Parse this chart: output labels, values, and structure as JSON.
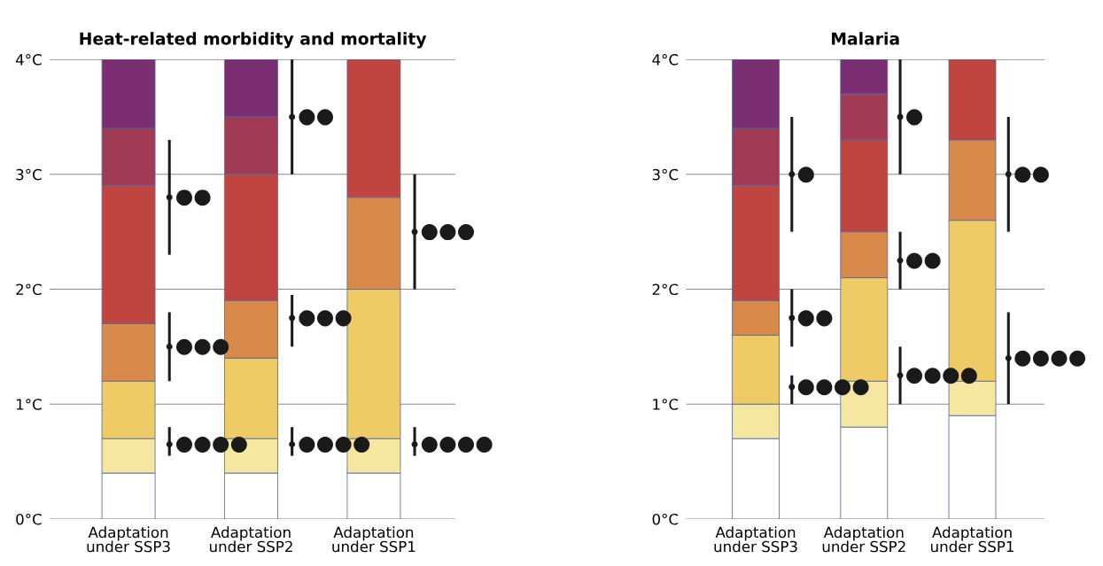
{
  "chart_data": [
    {
      "type": "bar",
      "title": "Heat-related morbidity and mortality",
      "stacked": true,
      "categories": [
        "Adaptation\nunder SSP3",
        null,
        null,
        "Adaptation\nunder SSP2",
        null,
        null,
        "Adaptation\nunder SSP1",
        null,
        null
      ],
      "ylim": [
        0,
        4
      ],
      "yticks": [
        {
          "value": 0,
          "label": "0°C"
        },
        {
          "value": 1,
          "label": "1°C"
        },
        {
          "value": 2,
          "label": "2°C"
        },
        {
          "value": 3,
          "label": "3°C"
        },
        {
          "value": 4,
          "label": "4°C"
        }
      ],
      "grid": "y",
      "series": [
        {
          "color": "#ffffff",
          "values": [
            0.4,
            null,
            null,
            0.4,
            null,
            null,
            0.4,
            null,
            null
          ]
        },
        {
          "color": "#f5e6a0",
          "values": [
            0.3,
            null,
            null,
            0.3,
            null,
            null,
            0.3,
            null,
            null
          ]
        },
        {
          "color": "#efcb65",
          "values": [
            0.5,
            null,
            null,
            0.7,
            null,
            null,
            1.3,
            null,
            null
          ]
        },
        {
          "color": "#d88a4b",
          "values": [
            0.5,
            null,
            null,
            0.5,
            null,
            null,
            0.8,
            null,
            null
          ]
        },
        {
          "color": "#c0443f",
          "values": [
            1.2,
            null,
            null,
            1.1,
            null,
            null,
            1.2,
            null,
            null
          ]
        },
        {
          "color": "#a03a55",
          "values": [
            0.5,
            null,
            null,
            0.5,
            null,
            null,
            0,
            null,
            null
          ]
        },
        {
          "color": "#7b2e72",
          "values": [
            0.6,
            null,
            null,
            0.5,
            null,
            null,
            0,
            null,
            null
          ]
        },
        {
          "type": "scatter",
          "color": "#1a1a1a",
          "marker": "circle",
          "values": [
            null,
            0.65,
            null,
            null,
            0.65,
            null,
            null,
            0.65,
            null
          ],
          "errors": [
            null,
            [
              0.55,
              0.8
            ],
            null,
            null,
            [
              0.55,
              0.8
            ],
            null,
            null,
            [
              0.55,
              0.8
            ],
            null
          ],
          "value_labels": [
            null,
            "●●●●",
            null,
            null,
            "●●●●",
            null,
            null,
            "●●●●",
            null
          ]
        },
        {
          "type": "scatter",
          "color": "#1a1a1a",
          "marker": "circle",
          "values": [
            null,
            1.5,
            null,
            null,
            1.75,
            null,
            null,
            2.5,
            null
          ],
          "errors": [
            null,
            [
              1.2,
              1.8
            ],
            null,
            null,
            [
              1.5,
              1.95
            ],
            null,
            null,
            [
              2.0,
              3.0
            ],
            null
          ],
          "value_labels": [
            null,
            "●●●",
            null,
            null,
            "●●●",
            null,
            null,
            "●●●",
            null
          ]
        },
        {
          "type": "scatter",
          "color": "#1a1a1a",
          "marker": "circle",
          "values": [
            null,
            2.8,
            null,
            null,
            3.5,
            null,
            null,
            null,
            null
          ],
          "errors": [
            null,
            [
              2.3,
              3.3
            ],
            null,
            null,
            [
              3.0,
              4.0
            ],
            null,
            null,
            null,
            null
          ],
          "value_labels": [
            null,
            "●●",
            null,
            null,
            "●●",
            null,
            null,
            null,
            null
          ]
        }
      ]
    },
    {
      "type": "bar",
      "title": "Malaria",
      "stacked": true,
      "categories": [
        "Adaptation\nunder SSP3",
        null,
        null,
        "Adaptation\nunder SSP2",
        null,
        null,
        "Adaptation\nunder SSP1",
        null,
        null
      ],
      "ylim": [
        0,
        4
      ],
      "yticks": [
        {
          "value": 0,
          "label": "0°C"
        },
        {
          "value": 1,
          "label": "1°C"
        },
        {
          "value": 2,
          "label": "2°C"
        },
        {
          "value": 3,
          "label": "3°C"
        },
        {
          "value": 4,
          "label": "4°C"
        }
      ],
      "grid": "y",
      "series": [
        {
          "color": "#ffffff",
          "values": [
            0.7,
            null,
            null,
            0.8,
            null,
            null,
            0.9,
            null,
            null
          ]
        },
        {
          "color": "#f5e6a0",
          "values": [
            0.3,
            null,
            null,
            0.4,
            null,
            null,
            0.3,
            null,
            null
          ]
        },
        {
          "color": "#efcb65",
          "values": [
            0.6,
            null,
            null,
            0.9,
            null,
            null,
            1.4,
            null,
            null
          ]
        },
        {
          "color": "#d88a4b",
          "values": [
            0.3,
            null,
            null,
            0.4,
            null,
            null,
            0.7,
            null,
            null
          ]
        },
        {
          "color": "#c0443f",
          "values": [
            1.0,
            null,
            null,
            0.8,
            null,
            null,
            0.7,
            null,
            null
          ]
        },
        {
          "color": "#a03a55",
          "values": [
            0.5,
            null,
            null,
            0.4,
            null,
            null,
            0,
            null,
            null
          ]
        },
        {
          "color": "#7b2e72",
          "values": [
            0.6,
            null,
            null,
            0.3,
            null,
            null,
            0,
            null,
            null
          ]
        },
        {
          "type": "scatter",
          "color": "#1a1a1a",
          "marker": "circle",
          "values": [
            null,
            1.15,
            null,
            null,
            1.25,
            null,
            null,
            1.4,
            null
          ],
          "errors": [
            null,
            [
              1.0,
              1.25
            ],
            null,
            null,
            [
              1.0,
              1.5
            ],
            null,
            null,
            [
              1.0,
              1.8
            ],
            null
          ],
          "value_labels": [
            null,
            "●●●●",
            null,
            null,
            "●●●●",
            null,
            null,
            "●●●●",
            null
          ]
        },
        {
          "type": "scatter",
          "color": "#1a1a1a",
          "marker": "circle",
          "values": [
            null,
            1.75,
            null,
            null,
            2.25,
            null,
            null,
            3.0,
            null
          ],
          "errors": [
            null,
            [
              1.5,
              2.0
            ],
            null,
            null,
            [
              2.0,
              2.5
            ],
            null,
            null,
            [
              2.5,
              3.5
            ],
            null
          ],
          "value_labels": [
            null,
            "●●",
            null,
            null,
            "●●",
            null,
            null,
            "●●",
            null
          ]
        },
        {
          "type": "scatter",
          "color": "#1a1a1a",
          "marker": "circle",
          "values": [
            null,
            3.0,
            null,
            null,
            3.5,
            null,
            null,
            null,
            null
          ],
          "errors": [
            null,
            [
              2.5,
              3.5
            ],
            null,
            null,
            [
              3.0,
              4.0
            ],
            null,
            null,
            null,
            null
          ],
          "value_labels": [
            null,
            "●",
            null,
            null,
            "●",
            null,
            null,
            null,
            null
          ]
        }
      ]
    }
  ]
}
